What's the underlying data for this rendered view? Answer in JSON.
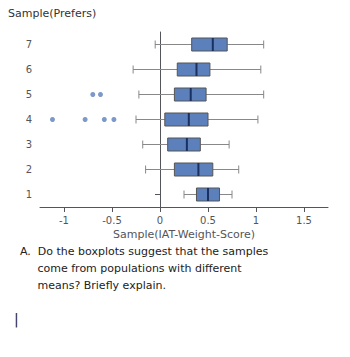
{
  "chart_data": {
    "type": "boxplot",
    "orientation": "horizontal",
    "ylabel": "Sample(Prefers)",
    "xlabel": "Sample(IAT-Weight-Score)",
    "xlim": [
      -1.25,
      1.75
    ],
    "xticks": [
      -1,
      -0.5,
      0,
      0.5,
      1,
      1.5
    ],
    "ylim": [
      0.5,
      7.5
    ],
    "yticks": [
      1,
      2,
      3,
      4,
      5,
      6,
      7
    ],
    "grid": false,
    "color": "#5b80bc",
    "y": [
      1,
      2,
      3,
      4,
      5,
      6,
      7
    ],
    "low": [
      0.25,
      -0.15,
      -0.18,
      -0.25,
      -0.22,
      -0.28,
      -0.05
    ],
    "q1": [
      0.38,
      0.15,
      0.08,
      0.05,
      0.15,
      0.18,
      0.33
    ],
    "median": [
      0.5,
      0.4,
      0.28,
      0.3,
      0.32,
      0.38,
      0.55
    ],
    "q3": [
      0.62,
      0.55,
      0.42,
      0.5,
      0.48,
      0.52,
      0.7
    ],
    "high": [
      0.75,
      0.82,
      0.72,
      1.02,
      1.08,
      1.05,
      1.08
    ],
    "fliers": [
      [],
      [],
      [],
      [
        -1.12,
        -0.78,
        -0.58,
        -0.48
      ],
      [
        -0.7,
        -0.62
      ],
      [],
      []
    ],
    "annotations": [
      "A.  Do the boxplots suggest that the samples",
      "     come from populations with different",
      "     means? Briefly explain.",
      "|"
    ]
  }
}
